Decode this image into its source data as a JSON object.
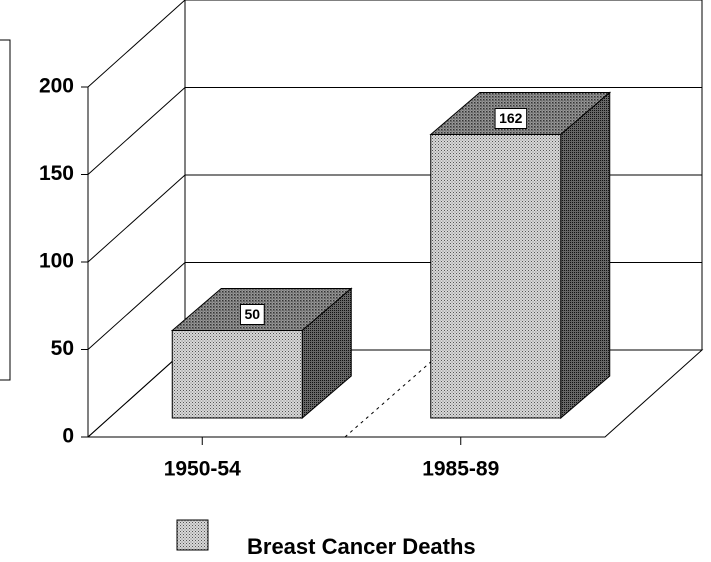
{
  "chart_data": {
    "type": "bar3d",
    "categories": [
      "1950-54",
      "1985-89"
    ],
    "series": [
      {
        "name": "Breast Cancer Deaths",
        "color": "#b0b0b0",
        "values": [
          50,
          162
        ]
      }
    ],
    "ylim": [
      0,
      200
    ],
    "yticks": [
      0,
      50,
      100,
      150,
      200
    ],
    "grid": true,
    "legend": "bottom"
  }
}
